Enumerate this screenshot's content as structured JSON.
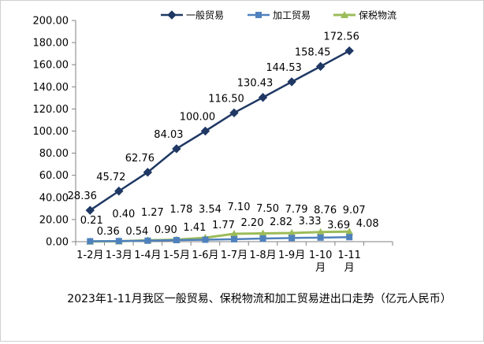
{
  "chart_data": {
    "type": "line",
    "title": "2023年1-11月我区一般贸易、保税物流和加工贸易进出口走势（亿元人民币）",
    "categories": [
      [
        "1-2月"
      ],
      [
        "1-3月"
      ],
      [
        "1-4月"
      ],
      [
        "1-5月"
      ],
      [
        "1-6月"
      ],
      [
        "1-7月"
      ],
      [
        "1-8月"
      ],
      [
        "1-9月"
      ],
      [
        "1-10",
        "月"
      ],
      [
        "1-11",
        "月"
      ]
    ],
    "ylim": [
      0,
      200
    ],
    "yticks": [
      "0.00",
      "20.00",
      "40.00",
      "60.00",
      "80.00",
      "100.00",
      "120.00",
      "140.00",
      "160.00",
      "180.00",
      "200.00"
    ],
    "legend_position": "top",
    "series": [
      {
        "name": "一般贸易",
        "color": "#1F3864",
        "marker": "diamond",
        "values": [
          28.36,
          45.72,
          62.76,
          84.03,
          100.0,
          116.5,
          130.43,
          144.53,
          158.45,
          172.56
        ],
        "labels": [
          "28.36",
          "45.72",
          "62.76",
          "84.03",
          "100.00",
          "116.50",
          "130.43",
          "144.53",
          "158.45",
          "172.56"
        ]
      },
      {
        "name": "加工贸易",
        "color": "#4F81BD",
        "marker": "square",
        "values": [
          0.36,
          0.54,
          0.9,
          1.41,
          1.77,
          2.2,
          2.82,
          3.33,
          3.69,
          4.08
        ],
        "labels": [
          "0.36",
          "0.54",
          "0.90",
          "1.41",
          "1.77",
          "2.20",
          "2.82",
          "3.33",
          "3.69",
          "4.08"
        ]
      },
      {
        "name": "保税物流",
        "color": "#9BBB59",
        "marker": "triangle",
        "values": [
          0.21,
          0.4,
          1.27,
          1.78,
          3.54,
          7.1,
          7.5,
          7.79,
          8.76,
          9.07
        ],
        "labels": [
          "0.21",
          "0.40",
          "1.27",
          "1.78",
          "3.54",
          "7.10",
          "7.50",
          "7.79",
          "8.76",
          "9.07"
        ]
      }
    ]
  }
}
